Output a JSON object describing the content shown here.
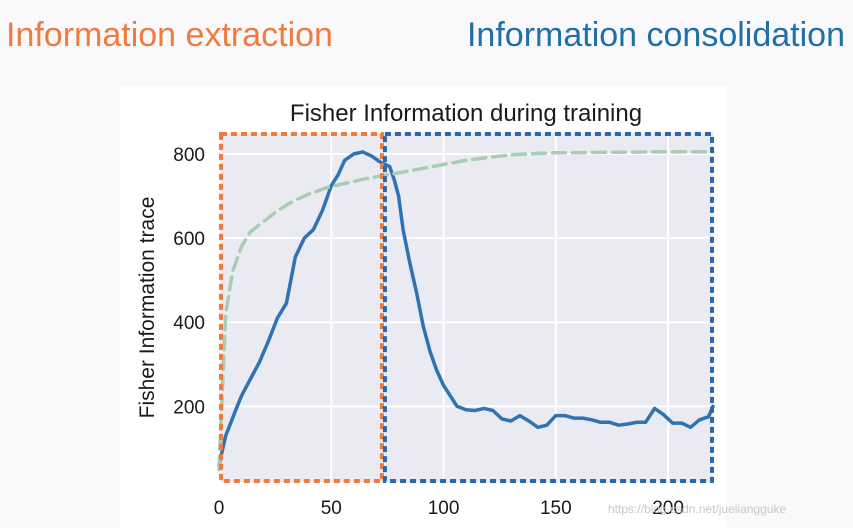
{
  "headings": {
    "left": "Information extraction",
    "right": "Information consolidation"
  },
  "colors": {
    "extraction": "#f07b3f",
    "consolidation": "#2a68a8",
    "line_main": "#2f73b2",
    "line_dashed": "#a8cdb2",
    "plot_bg": "#eaeaf2",
    "grid": "#ffffff",
    "text": "#1a1a1a"
  },
  "chart_data": {
    "type": "line",
    "title": "Fisher Information during training",
    "xlabel": "",
    "ylabel": "Fisher Information trace",
    "xlim": [
      0,
      220
    ],
    "ylim": [
      20,
      850
    ],
    "xticks": [
      0,
      50,
      100,
      150,
      200
    ],
    "yticks": [
      200,
      400,
      600,
      800
    ],
    "grid": true,
    "series": [
      {
        "style": "solid",
        "x": [
          0,
          3,
          7,
          10,
          14,
          18,
          22,
          26,
          30,
          34,
          38,
          42,
          46,
          50,
          53,
          56,
          60,
          64,
          68,
          72,
          74,
          76,
          78,
          80,
          82,
          85,
          88,
          91,
          94,
          97,
          100,
          103,
          106,
          110,
          114,
          118,
          122,
          126,
          130,
          134,
          138,
          142,
          146,
          150,
          154,
          158,
          162,
          166,
          170,
          174,
          178,
          182,
          186,
          190,
          194,
          198,
          202,
          206,
          210,
          214,
          218,
          220
        ],
        "y": [
          60,
          130,
          185,
          225,
          265,
          305,
          355,
          410,
          445,
          555,
          600,
          620,
          665,
          725,
          750,
          785,
          800,
          805,
          795,
          780,
          775,
          770,
          740,
          700,
          620,
          540,
          470,
          390,
          330,
          285,
          250,
          225,
          200,
          192,
          190,
          195,
          190,
          170,
          165,
          178,
          165,
          150,
          155,
          178,
          178,
          172,
          172,
          168,
          162,
          162,
          155,
          158,
          162,
          162,
          195,
          180,
          160,
          160,
          150,
          168,
          175,
          200
        ]
      },
      {
        "style": "dashed",
        "x": [
          0,
          3,
          6,
          10,
          14,
          20,
          26,
          32,
          40,
          48,
          56,
          64,
          72,
          80,
          90,
          100,
          110,
          120,
          130,
          140,
          150,
          160,
          170,
          180,
          190,
          200,
          210,
          220
        ],
        "y": [
          50,
          420,
          520,
          580,
          615,
          640,
          665,
          685,
          705,
          720,
          730,
          740,
          748,
          755,
          765,
          775,
          785,
          792,
          798,
          801,
          803,
          803,
          804,
          804,
          805,
          805,
          805,
          805
        ]
      }
    ],
    "regions": [
      {
        "x": [
          0,
          73
        ],
        "color": "#f07b3f"
      },
      {
        "x": [
          73,
          220
        ],
        "color": "#2a68a8"
      }
    ]
  },
  "watermark": "https://blog.csdn.net/jueliangguke"
}
